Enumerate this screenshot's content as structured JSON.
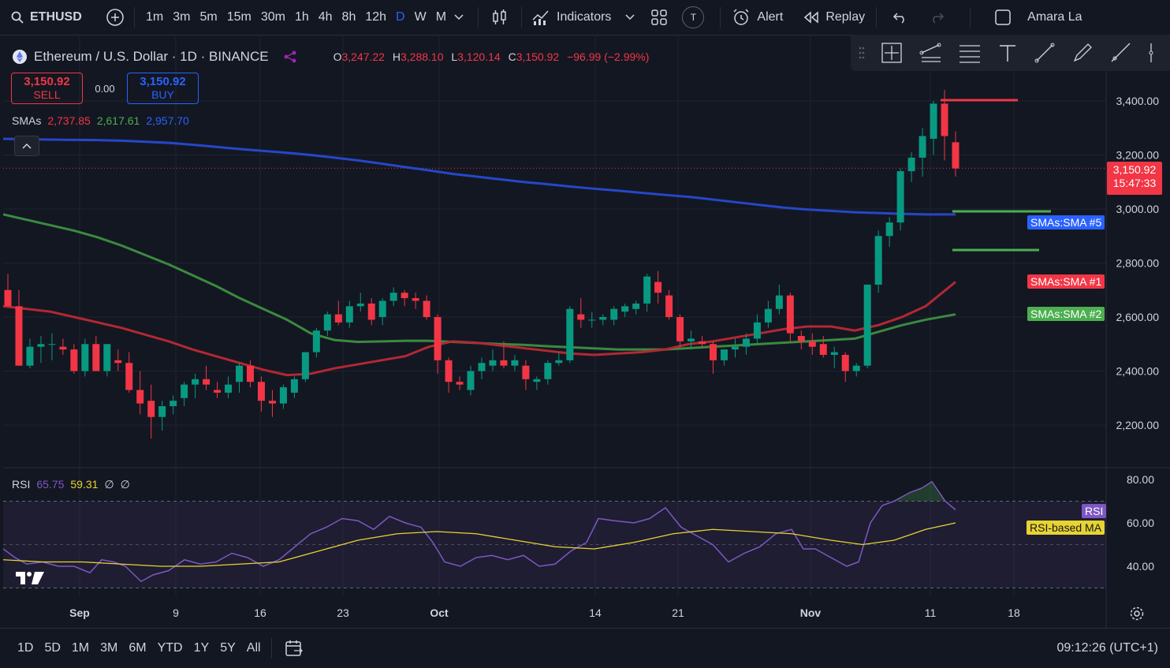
{
  "topbar": {
    "symbol": "ETHUSD",
    "timeframes": [
      "1m",
      "3m",
      "5m",
      "15m",
      "30m",
      "1h",
      "4h",
      "8h",
      "12h",
      "D",
      "W",
      "M"
    ],
    "active_timeframe": "D",
    "indicators_label": "Indicators",
    "alert_label": "Alert",
    "replay_label": "Replay",
    "user_name": "Amara La",
    "t_badge": "T"
  },
  "legend": {
    "title": "Ethereum / U.S. Dollar · 1D · BINANCE",
    "o_label": "O",
    "o": "3,247.22",
    "h_label": "H",
    "h": "3,288.10",
    "l_label": "L",
    "l": "3,120.14",
    "c_label": "C",
    "c": "3,150.92",
    "change": "−96.99 (−2.99%)"
  },
  "trade": {
    "sell_price": "3,150.92",
    "sell_label": "SELL",
    "spread": "0.00",
    "buy_price": "3,150.92",
    "buy_label": "BUY"
  },
  "sma_legend": {
    "label": "SMAs",
    "v1": "2,737.85",
    "v2": "2,617.61",
    "v3": "2,957.70"
  },
  "rsi_legend": {
    "label": "RSI",
    "v1": "65.75",
    "v2": "59.31",
    "s1": "∅",
    "s2": "∅"
  },
  "price_axis": [
    "3,400.00",
    "3,200.00",
    "3,000.00",
    "2,800.00",
    "2,600.00",
    "2,400.00",
    "2,200.00"
  ],
  "rsi_axis": [
    "80.00",
    "60.00",
    "40.00"
  ],
  "time_axis": [
    "Sep",
    "9",
    "16",
    "23",
    "Oct",
    "14",
    "21",
    "Nov",
    "11",
    "18"
  ],
  "last_price": {
    "price": "3,150.92",
    "countdown": "15:47:33"
  },
  "pills": {
    "sma5": "SMAs:SMA #5",
    "sma1": "SMAs:SMA #1",
    "sma2": "SMAs:SMA #2",
    "rsi": "RSI",
    "rsi_ma": "RSI-based MA"
  },
  "bottombar": {
    "ranges": [
      "1D",
      "5D",
      "1M",
      "3M",
      "6M",
      "YTD",
      "1Y",
      "5Y",
      "All"
    ],
    "clock": "09:12:26 (UTC+1)"
  },
  "colors": {
    "up": "#089981",
    "down": "#f23645",
    "sma_blue": "#2647c8",
    "sma_red": "#b22833",
    "sma_green": "#3b8a3f",
    "rsi": "#7e57c2",
    "rsi_ma": "#e8d331"
  },
  "chart_data": {
    "type": "candlestick",
    "y_range": [
      2050,
      3450
    ],
    "candles": [
      [
        2700,
        2760,
        2640,
        2640
      ],
      [
        2640,
        2700,
        2420,
        2420
      ],
      [
        2420,
        2520,
        2410,
        2490
      ],
      [
        2490,
        2530,
        2430,
        2500
      ],
      [
        2500,
        2540,
        2440,
        2500
      ],
      [
        2490,
        2520,
        2460,
        2480
      ],
      [
        2480,
        2500,
        2390,
        2400
      ],
      [
        2400,
        2520,
        2380,
        2500
      ],
      [
        2500,
        2530,
        2400,
        2400
      ],
      [
        2400,
        2500,
        2380,
        2500
      ],
      [
        2440,
        2480,
        2400,
        2430
      ],
      [
        2430,
        2470,
        2320,
        2330
      ],
      [
        2330,
        2400,
        2240,
        2280
      ],
      [
        2290,
        2350,
        2150,
        2230
      ],
      [
        2230,
        2290,
        2180,
        2270
      ],
      [
        2270,
        2310,
        2240,
        2290
      ],
      [
        2300,
        2360,
        2270,
        2350
      ],
      [
        2350,
        2390,
        2300,
        2370
      ],
      [
        2370,
        2420,
        2330,
        2350
      ],
      [
        2330,
        2360,
        2300,
        2320
      ],
      [
        2320,
        2380,
        2300,
        2350
      ],
      [
        2360,
        2430,
        2320,
        2420
      ],
      [
        2420,
        2440,
        2340,
        2360
      ],
      [
        2360,
        2380,
        2250,
        2290
      ],
      [
        2290,
        2330,
        2230,
        2280
      ],
      [
        2280,
        2350,
        2260,
        2340
      ],
      [
        2320,
        2380,
        2300,
        2370
      ],
      [
        2370,
        2470,
        2360,
        2470
      ],
      [
        2470,
        2560,
        2450,
        2550
      ],
      [
        2550,
        2620,
        2530,
        2610
      ],
      [
        2610,
        2660,
        2570,
        2580
      ],
      [
        2580,
        2660,
        2560,
        2640
      ],
      [
        2640,
        2690,
        2620,
        2650
      ],
      [
        2650,
        2670,
        2570,
        2590
      ],
      [
        2600,
        2670,
        2570,
        2660
      ],
      [
        2660,
        2710,
        2640,
        2690
      ],
      [
        2690,
        2700,
        2640,
        2670
      ],
      [
        2670,
        2690,
        2630,
        2660
      ],
      [
        2660,
        2680,
        2590,
        2600
      ],
      [
        2600,
        2610,
        2390,
        2440
      ],
      [
        2440,
        2450,
        2320,
        2360
      ],
      [
        2360,
        2380,
        2330,
        2350
      ],
      [
        2330,
        2420,
        2310,
        2400
      ],
      [
        2400,
        2450,
        2370,
        2430
      ],
      [
        2420,
        2480,
        2400,
        2440
      ],
      [
        2440,
        2510,
        2410,
        2420
      ],
      [
        2420,
        2460,
        2400,
        2440
      ],
      [
        2420,
        2440,
        2330,
        2370
      ],
      [
        2360,
        2380,
        2330,
        2370
      ],
      [
        2370,
        2440,
        2350,
        2430
      ],
      [
        2430,
        2470,
        2420,
        2440
      ],
      [
        2440,
        2640,
        2430,
        2630
      ],
      [
        2610,
        2670,
        2560,
        2590
      ],
      [
        2590,
        2620,
        2560,
        2590
      ],
      [
        2590,
        2610,
        2570,
        2600
      ],
      [
        2590,
        2640,
        2570,
        2630
      ],
      [
        2620,
        2650,
        2600,
        2640
      ],
      [
        2630,
        2660,
        2610,
        2650
      ],
      [
        2650,
        2760,
        2620,
        2750
      ],
      [
        2730,
        2770,
        2650,
        2690
      ],
      [
        2680,
        2700,
        2590,
        2600
      ],
      [
        2600,
        2610,
        2490,
        2510
      ],
      [
        2510,
        2550,
        2480,
        2520
      ],
      [
        2510,
        2530,
        2490,
        2500
      ],
      [
        2500,
        2510,
        2390,
        2440
      ],
      [
        2440,
        2480,
        2420,
        2480
      ],
      [
        2480,
        2520,
        2450,
        2490
      ],
      [
        2490,
        2540,
        2460,
        2520
      ],
      [
        2520,
        2610,
        2500,
        2580
      ],
      [
        2580,
        2660,
        2560,
        2630
      ],
      [
        2630,
        2720,
        2610,
        2680
      ],
      [
        2680,
        2690,
        2510,
        2540
      ],
      [
        2530,
        2550,
        2480,
        2510
      ],
      [
        2510,
        2540,
        2460,
        2490
      ],
      [
        2500,
        2530,
        2450,
        2460
      ],
      [
        2460,
        2490,
        2410,
        2470
      ],
      [
        2460,
        2470,
        2360,
        2400
      ],
      [
        2400,
        2430,
        2380,
        2420
      ],
      [
        2420,
        2720,
        2410,
        2720
      ],
      [
        2720,
        2920,
        2690,
        2900
      ],
      [
        2900,
        2970,
        2860,
        2950
      ],
      [
        2950,
        3150,
        2920,
        3140
      ],
      [
        3140,
        3210,
        3100,
        3190
      ],
      [
        3190,
        3300,
        3120,
        3270
      ],
      [
        3260,
        3400,
        3200,
        3390
      ],
      [
        3390,
        3440,
        3180,
        3270
      ],
      [
        3247,
        3288,
        3120,
        3150
      ]
    ],
    "sma_blue": [
      [
        0,
        3260
      ],
      [
        30,
        3258
      ],
      [
        60,
        3257
      ],
      [
        90,
        3256
      ],
      [
        120,
        3255
      ],
      [
        150,
        3253
      ],
      [
        180,
        3249
      ],
      [
        210,
        3245
      ],
      [
        240,
        3238
      ],
      [
        270,
        3230
      ],
      [
        300,
        3222
      ],
      [
        330,
        3215
      ],
      [
        360,
        3208
      ],
      [
        390,
        3200
      ],
      [
        420,
        3190
      ],
      [
        450,
        3180
      ],
      [
        480,
        3168
      ],
      [
        510,
        3155
      ],
      [
        540,
        3143
      ],
      [
        570,
        3130
      ],
      [
        600,
        3120
      ],
      [
        630,
        3110
      ],
      [
        660,
        3100
      ],
      [
        690,
        3092
      ],
      [
        720,
        3083
      ],
      [
        750,
        3075
      ],
      [
        780,
        3068
      ],
      [
        810,
        3060
      ],
      [
        840,
        3052
      ],
      [
        870,
        3045
      ],
      [
        900,
        3035
      ],
      [
        930,
        3025
      ],
      [
        960,
        3015
      ],
      [
        990,
        3005
      ],
      [
        1020,
        2998
      ],
      [
        1050,
        2993
      ],
      [
        1080,
        2988
      ],
      [
        1110,
        2985
      ],
      [
        1140,
        2982
      ],
      [
        1170,
        2980
      ],
      [
        1208,
        2980
      ]
    ],
    "sma_red": [
      [
        0,
        2640
      ],
      [
        30,
        2630
      ],
      [
        60,
        2620
      ],
      [
        90,
        2600
      ],
      [
        120,
        2580
      ],
      [
        150,
        2560
      ],
      [
        180,
        2535
      ],
      [
        210,
        2510
      ],
      [
        240,
        2480
      ],
      [
        270,
        2455
      ],
      [
        300,
        2430
      ],
      [
        330,
        2405
      ],
      [
        360,
        2385
      ],
      [
        390,
        2390
      ],
      [
        420,
        2410
      ],
      [
        450,
        2425
      ],
      [
        480,
        2440
      ],
      [
        510,
        2455
      ],
      [
        540,
        2490
      ],
      [
        570,
        2510
      ],
      [
        600,
        2505
      ],
      [
        630,
        2495
      ],
      [
        660,
        2485
      ],
      [
        690,
        2475
      ],
      [
        720,
        2465
      ],
      [
        750,
        2460
      ],
      [
        780,
        2465
      ],
      [
        810,
        2470
      ],
      [
        840,
        2480
      ],
      [
        870,
        2500
      ],
      [
        900,
        2510
      ],
      [
        930,
        2525
      ],
      [
        960,
        2540
      ],
      [
        990,
        2555
      ],
      [
        1020,
        2565
      ],
      [
        1050,
        2565
      ],
      [
        1080,
        2550
      ],
      [
        1110,
        2570
      ],
      [
        1140,
        2600
      ],
      [
        1170,
        2640
      ],
      [
        1208,
        2730
      ]
    ],
    "sma_green": [
      [
        0,
        2980
      ],
      [
        30,
        2960
      ],
      [
        60,
        2940
      ],
      [
        90,
        2920
      ],
      [
        120,
        2895
      ],
      [
        150,
        2865
      ],
      [
        180,
        2830
      ],
      [
        210,
        2795
      ],
      [
        240,
        2755
      ],
      [
        270,
        2715
      ],
      [
        300,
        2670
      ],
      [
        330,
        2630
      ],
      [
        360,
        2590
      ],
      [
        390,
        2540
      ],
      [
        420,
        2515
      ],
      [
        450,
        2508
      ],
      [
        480,
        2510
      ],
      [
        510,
        2512
      ],
      [
        540,
        2512
      ],
      [
        570,
        2508
      ],
      [
        600,
        2504
      ],
      [
        630,
        2500
      ],
      [
        660,
        2497
      ],
      [
        690,
        2492
      ],
      [
        720,
        2488
      ],
      [
        750,
        2484
      ],
      [
        780,
        2480
      ],
      [
        810,
        2480
      ],
      [
        840,
        2480
      ],
      [
        870,
        2485
      ],
      [
        900,
        2490
      ],
      [
        930,
        2495
      ],
      [
        960,
        2500
      ],
      [
        990,
        2505
      ],
      [
        1020,
        2510
      ],
      [
        1050,
        2515
      ],
      [
        1080,
        2520
      ],
      [
        1110,
        2545
      ],
      [
        1140,
        2570
      ],
      [
        1170,
        2590
      ],
      [
        1208,
        2610
      ]
    ],
    "rsi_range": [
      30,
      82
    ],
    "rsi": [
      [
        0,
        48
      ],
      [
        15,
        44
      ],
      [
        30,
        41
      ],
      [
        50,
        42
      ],
      [
        70,
        40
      ],
      [
        90,
        40
      ],
      [
        110,
        37
      ],
      [
        125,
        43
      ],
      [
        140,
        42
      ],
      [
        155,
        40
      ],
      [
        175,
        33
      ],
      [
        190,
        36
      ],
      [
        210,
        38
      ],
      [
        230,
        43
      ],
      [
        250,
        41
      ],
      [
        270,
        42
      ],
      [
        290,
        46
      ],
      [
        310,
        44
      ],
      [
        330,
        40
      ],
      [
        350,
        43
      ],
      [
        370,
        49
      ],
      [
        390,
        55
      ],
      [
        410,
        58
      ],
      [
        430,
        62
      ],
      [
        450,
        61
      ],
      [
        470,
        57
      ],
      [
        490,
        63
      ],
      [
        510,
        60
      ],
      [
        530,
        58
      ],
      [
        545,
        51
      ],
      [
        560,
        42
      ],
      [
        580,
        40
      ],
      [
        600,
        44
      ],
      [
        620,
        45
      ],
      [
        640,
        43
      ],
      [
        660,
        45
      ],
      [
        680,
        40
      ],
      [
        700,
        41
      ],
      [
        720,
        47
      ],
      [
        740,
        51
      ],
      [
        755,
        62
      ],
      [
        775,
        61
      ],
      [
        800,
        60
      ],
      [
        820,
        62
      ],
      [
        840,
        67
      ],
      [
        860,
        58
      ],
      [
        880,
        54
      ],
      [
        900,
        50
      ],
      [
        920,
        42
      ],
      [
        940,
        46
      ],
      [
        960,
        49
      ],
      [
        980,
        55
      ],
      [
        1000,
        57
      ],
      [
        1015,
        48
      ],
      [
        1030,
        48
      ],
      [
        1050,
        44
      ],
      [
        1070,
        40
      ],
      [
        1085,
        42
      ],
      [
        1100,
        60
      ],
      [
        1115,
        68
      ],
      [
        1130,
        70
      ],
      [
        1150,
        74
      ],
      [
        1165,
        76
      ],
      [
        1178,
        79
      ],
      [
        1195,
        70
      ],
      [
        1208,
        66
      ]
    ],
    "rsi_ma": [
      [
        0,
        43
      ],
      [
        50,
        42
      ],
      [
        100,
        42
      ],
      [
        150,
        41
      ],
      [
        200,
        40
      ],
      [
        250,
        40
      ],
      [
        300,
        41
      ],
      [
        350,
        42
      ],
      [
        400,
        47
      ],
      [
        450,
        52
      ],
      [
        500,
        55
      ],
      [
        550,
        56
      ],
      [
        600,
        55
      ],
      [
        650,
        52
      ],
      [
        700,
        49
      ],
      [
        750,
        48
      ],
      [
        800,
        51
      ],
      [
        850,
        55
      ],
      [
        900,
        57
      ],
      [
        950,
        56
      ],
      [
        1000,
        55
      ],
      [
        1050,
        52
      ],
      [
        1090,
        50
      ],
      [
        1130,
        52
      ],
      [
        1170,
        57
      ],
      [
        1208,
        60
      ]
    ],
    "rsi_levels": [
      70,
      50,
      30
    ]
  }
}
